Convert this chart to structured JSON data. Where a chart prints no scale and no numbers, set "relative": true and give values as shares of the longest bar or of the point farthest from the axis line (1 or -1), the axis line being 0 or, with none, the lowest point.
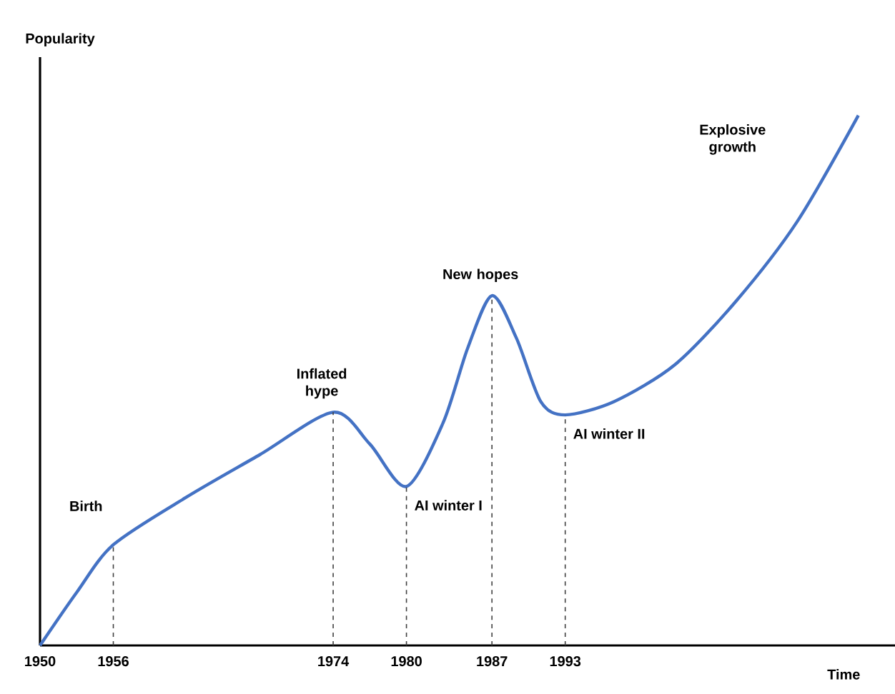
{
  "chart_data": {
    "type": "line",
    "relative": true,
    "xlabel": "Time",
    "ylabel": "Popularity",
    "xlim": [
      1950,
      2020
    ],
    "xticks": [
      1950,
      1956,
      1974,
      1980,
      1987,
      1993
    ],
    "series": [
      {
        "color": "#4472c4",
        "x": [
          1950,
          1953,
          1956,
          1962,
          1968,
          1974,
          1977,
          1980,
          1983,
          1985,
          1987,
          1989,
          1991,
          1993,
          1997,
          2002,
          2007,
          2012,
          2017
        ],
        "values": [
          0,
          0.1,
          0.19,
          0.28,
          0.36,
          0.44,
          0.38,
          0.3,
          0.42,
          0.56,
          0.66,
          0.58,
          0.46,
          0.435,
          0.46,
          0.53,
          0.65,
          0.8,
          1.0
        ]
      }
    ],
    "ref_lines": [
      {
        "axis": "x",
        "value": 1956,
        "color": "#404040",
        "line_style": "dashed"
      },
      {
        "axis": "x",
        "value": 1974,
        "color": "#404040",
        "line_style": "dashed"
      },
      {
        "axis": "x",
        "value": 1980,
        "color": "#404040",
        "line_style": "dashed"
      },
      {
        "axis": "x",
        "value": 1987,
        "color": "#404040",
        "line_style": "dashed"
      },
      {
        "axis": "x",
        "value": 1993,
        "color": "#404040",
        "line_style": "dashed"
      }
    ],
    "annotations": [
      {
        "text": "Birth",
        "x": 1956,
        "y": 0.19
      },
      {
        "text": "Inflated hype",
        "x": 1974,
        "y": 0.44
      },
      {
        "text": "AI winter I",
        "x": 1980,
        "y": 0.3
      },
      {
        "text": "New hopes",
        "x": 1987,
        "y": 0.66
      },
      {
        "text": "AI winter II",
        "x": 1993,
        "y": 0.435
      },
      "Explosive growth"
    ],
    "grid": false,
    "marker": "none",
    "line_style": "solid"
  }
}
